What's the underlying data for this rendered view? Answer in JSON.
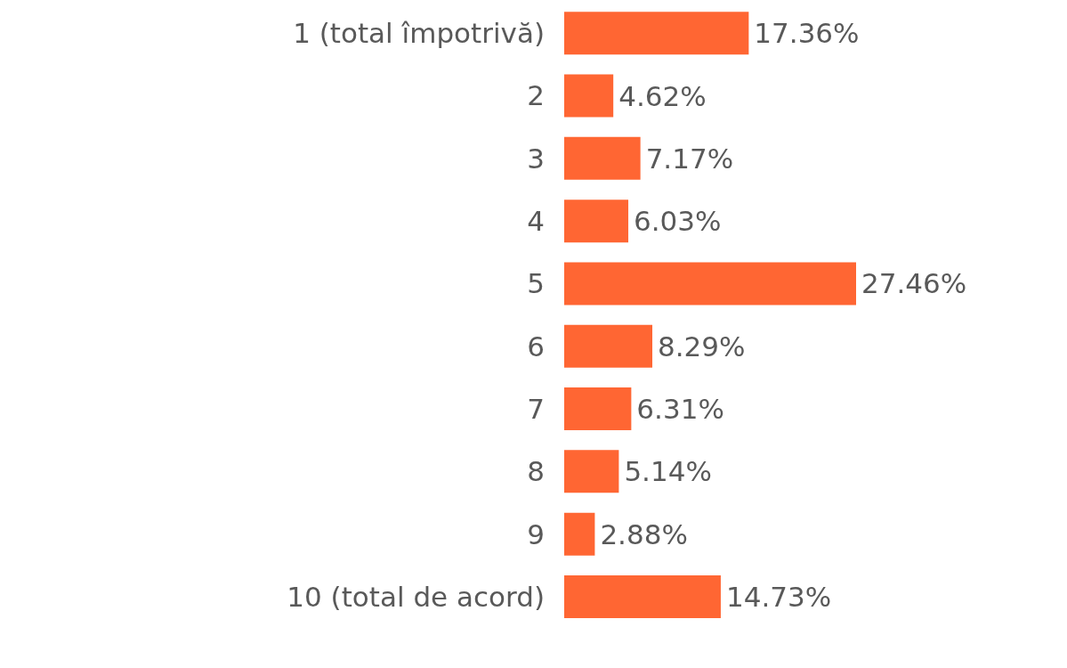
{
  "chart_data": {
    "type": "bar",
    "orientation": "horizontal",
    "categories": [
      "1 (total împotrivă)",
      "2",
      "3",
      "4",
      "5",
      "6",
      "7",
      "8",
      "9",
      "10 (total de acord)"
    ],
    "values": [
      17.36,
      4.62,
      7.17,
      6.03,
      27.46,
      8.29,
      6.31,
      5.14,
      2.88,
      14.73
    ],
    "value_labels": [
      "17.36%",
      "4.62%",
      "7.17%",
      "6.03%",
      "27.46%",
      "8.29%",
      "6.31%",
      "5.14%",
      "2.88%",
      "14.73%"
    ],
    "color": "#ff6633"
  }
}
